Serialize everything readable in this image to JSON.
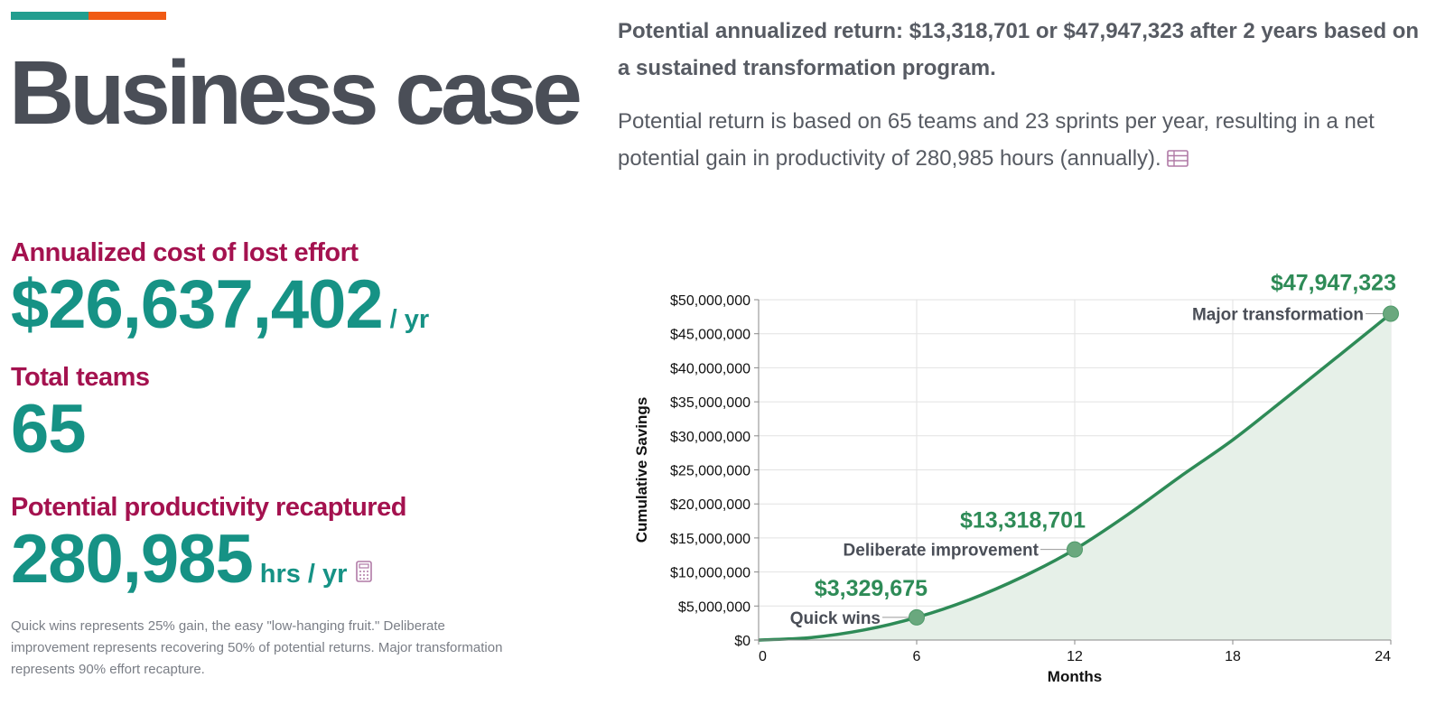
{
  "page": {
    "title": "Business case",
    "accent_colors": [
      "#229e8f",
      "#f05a14"
    ]
  },
  "summary": {
    "lead": "Potential annualized return: $13,318,701 or $47,947,323 after 2 years based on a sustained transformation program.",
    "detail": "Potential return is based on 65 teams and 23 sprints per year, resulting in a net potential gain in productivity of 280,985 hours (annually).",
    "detail_icon": "table-icon"
  },
  "metrics": {
    "cost": {
      "label": "Annualized cost of lost effort",
      "value": "$26,637,402",
      "unit": "/ yr"
    },
    "teams": {
      "label": "Total teams",
      "value": "65"
    },
    "productivity": {
      "label": "Potential productivity recaptured",
      "value": "280,985",
      "unit": "hrs / yr",
      "icon": "calculator-icon"
    },
    "footnote": "Quick wins represents 25% gain, the easy \"low-hanging fruit.\" Deliberate improvement represents recovering 50% of potential returns. Major transformation represents 90% effort recapture."
  },
  "colors": {
    "label": "#a4124f",
    "value": "#169285",
    "line": "#2e8b57",
    "area": "#e6f0e8",
    "point": "#6aa87e"
  },
  "chart_data": {
    "type": "area",
    "xlabel": "Months",
    "ylabel": "Cumulative Savings",
    "xlim": [
      0,
      24
    ],
    "ylim": [
      0,
      50000000
    ],
    "x_ticks": [
      0,
      6,
      12,
      18,
      24
    ],
    "x_tick_labels": [
      "0",
      "6",
      "12",
      "18",
      "24"
    ],
    "y_ticks": [
      0,
      5000000,
      10000000,
      15000000,
      20000000,
      25000000,
      30000000,
      35000000,
      40000000,
      45000000,
      50000000
    ],
    "y_tick_labels": [
      "$0",
      "$5,000,000",
      "$10,000,000",
      "$15,000,000",
      "$20,000,000",
      "$25,000,000",
      "$30,000,000",
      "$35,000,000",
      "$40,000,000",
      "$45,000,000",
      "$50,000,000"
    ],
    "grid": true,
    "series": [
      {
        "x": [
          0,
          2,
          4,
          6,
          8,
          10,
          12,
          14,
          16,
          18,
          20,
          22,
          24
        ],
        "y": [
          0,
          370000,
          1480000,
          3329675,
          5920000,
          9250000,
          13318701,
          18400000,
          24000000,
          29400000,
          35500000,
          41700000,
          47947323
        ]
      }
    ],
    "annotations": [
      {
        "x": 6,
        "y": 3329675,
        "value_label": "$3,329,675",
        "name": "Quick wins"
      },
      {
        "x": 12,
        "y": 13318701,
        "value_label": "$13,318,701",
        "name": "Deliberate improvement"
      },
      {
        "x": 24,
        "y": 47947323,
        "value_label": "$47,947,323",
        "name": "Major transformation"
      }
    ]
  }
}
